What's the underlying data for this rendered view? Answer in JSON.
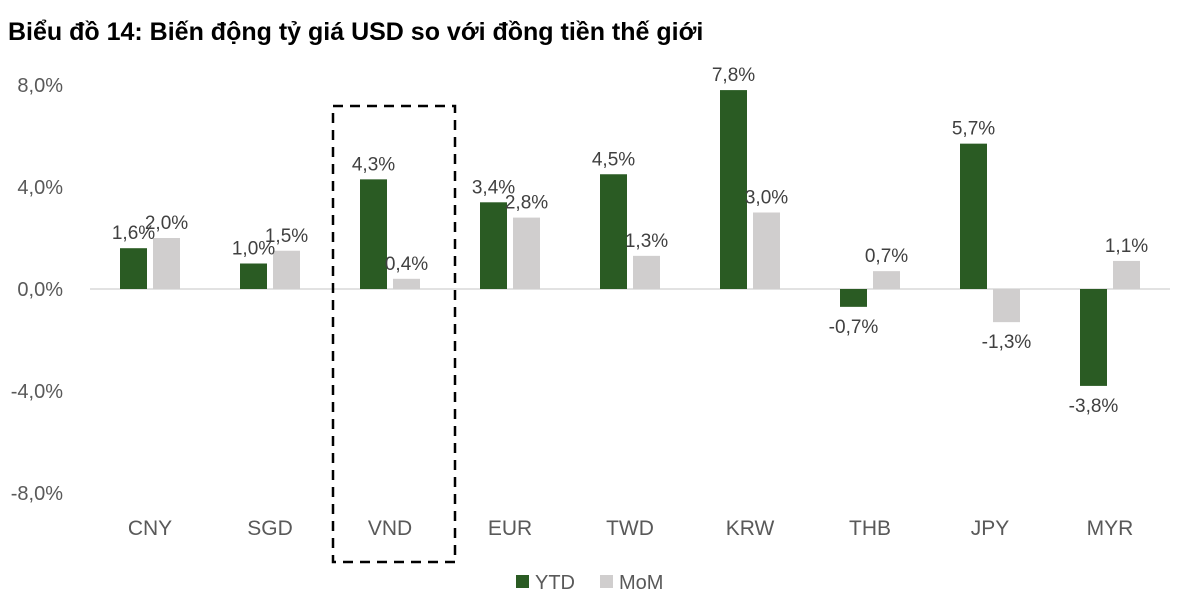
{
  "title": "Biểu đồ 14: Biến động tỷ giá USD so với đồng tiền thế giới",
  "chart_data": {
    "type": "bar",
    "title": "Biểu đồ 14: Biến động tỷ giá USD so với đồng tiền thế giới",
    "categories": [
      "CNY",
      "SGD",
      "VND",
      "EUR",
      "TWD",
      "KRW",
      "THB",
      "JPY",
      "MYR"
    ],
    "series": [
      {
        "name": "YTD",
        "color": "#2a5b23",
        "values": [
          1.6,
          1.0,
          4.3,
          3.4,
          4.5,
          7.8,
          -0.7,
          5.7,
          -3.8
        ],
        "labels": [
          "1,6%",
          "1,0%",
          "4,3%",
          "3,4%",
          "4,5%",
          "7,8%",
          "-0,7%",
          "5,7%",
          "-3,8%"
        ]
      },
      {
        "name": "MoM",
        "color": "#d0cece",
        "values": [
          2.0,
          1.5,
          0.4,
          2.8,
          1.3,
          3.0,
          0.7,
          -1.3,
          1.1
        ],
        "labels": [
          "2,0%",
          "1,5%",
          "0,4%",
          "2,8%",
          "1,3%",
          "3,0%",
          "0,7%",
          "-1,3%",
          "1,1%"
        ]
      }
    ],
    "y_ticks": [
      8.0,
      4.0,
      0.0,
      -4.0,
      -8.0
    ],
    "y_tick_labels": [
      "8,0%",
      "4,0%",
      "0,0%",
      "-4,0%",
      "-8,0%"
    ],
    "ylim": [
      -8,
      8
    ],
    "highlighted_category": "VND",
    "grid": false,
    "legend_position": "bottom",
    "xlabel": "",
    "ylabel": ""
  }
}
